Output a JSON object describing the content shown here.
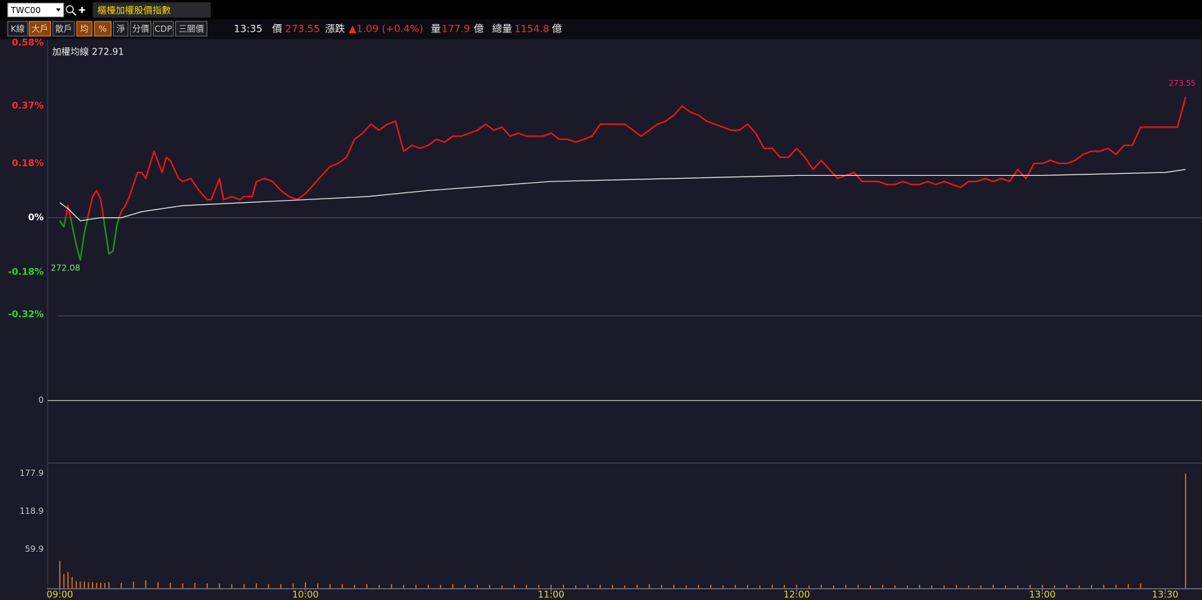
{
  "header": {
    "symbol": "TWC00",
    "title": "櫃檯加權股價指數"
  },
  "toolbar": {
    "buttons": [
      {
        "label": "K線",
        "active": false
      },
      {
        "label": "大戶",
        "active": true
      },
      {
        "label": "散戶",
        "active": false
      },
      {
        "label": "均",
        "active": true
      },
      {
        "label": "%",
        "active": true
      },
      {
        "label": "淨",
        "active": false
      },
      {
        "label": "分價",
        "active": false
      },
      {
        "label": "CDP",
        "active": false
      },
      {
        "label": "三關價",
        "active": false
      }
    ]
  },
  "quote": {
    "time": "13:35",
    "price_label": "價",
    "price": "273.55",
    "change_label": "漲跌",
    "change": "▲1.09 (+0.4%)",
    "volume_label": "量",
    "volume": "177.9",
    "volume_unit": "億",
    "total_label": "總量",
    "total": "1154.8",
    "total_unit": "億"
  },
  "chart_data": [
    {
      "type": "line",
      "xlim": [
        "08:57",
        "13:39"
      ],
      "ylim": [
        -0.325,
        0.589
      ],
      "yticks": [
        {
          "value": 0.58,
          "label": "0.58%"
        },
        {
          "value": 0.37,
          "label": "0.37%"
        },
        {
          "value": 0.18,
          "label": "0.18%"
        },
        {
          "value": 0,
          "label": "0%"
        },
        {
          "value": -0.18,
          "label": "-0.18%"
        },
        {
          "value": -0.32,
          "label": "-0.32%"
        }
      ],
      "zero_line": true,
      "series": [
        {
          "color": "#e8141c",
          "down_color": "#1f8f1f",
          "x": [
            "09:00",
            "09:01",
            "09:02",
            "09:04",
            "09:05",
            "09:06",
            "09:07",
            "09:08",
            "09:09",
            "09:10",
            "09:11",
            "09:12",
            "09:13",
            "09:14",
            "09:15",
            "09:16",
            "09:17",
            "09:18",
            "09:19",
            "09:20",
            "09:21",
            "09:23",
            "09:25",
            "09:26",
            "09:27",
            "09:29",
            "09:30",
            "09:32",
            "09:34",
            "09:36",
            "09:37",
            "09:39",
            "09:40",
            "09:42",
            "09:44",
            "09:45",
            "09:47",
            "09:48",
            "09:50",
            "09:52",
            "09:54",
            "09:56",
            "09:58",
            "10:00",
            "10:02",
            "10:04",
            "10:06",
            "10:08",
            "10:10",
            "10:12",
            "10:14",
            "10:16",
            "10:18",
            "10:20",
            "10:22",
            "10:24",
            "10:26",
            "10:28",
            "10:30",
            "10:32",
            "10:34",
            "10:36",
            "10:38",
            "10:40",
            "10:42",
            "10:44",
            "10:46",
            "10:48",
            "10:50",
            "10:52",
            "10:54",
            "10:56",
            "10:58",
            "11:00",
            "11:02",
            "11:04",
            "11:06",
            "11:08",
            "11:10",
            "11:12",
            "11:14",
            "11:16",
            "11:18",
            "11:20",
            "11:22",
            "11:24",
            "11:26",
            "11:28",
            "11:30",
            "11:32",
            "11:34",
            "11:36",
            "11:38",
            "11:40",
            "11:42",
            "11:44",
            "11:46",
            "11:48",
            "11:50",
            "11:52",
            "11:54",
            "11:56",
            "11:58",
            "12:00",
            "12:02",
            "12:04",
            "12:06",
            "12:08",
            "12:10",
            "12:12",
            "12:14",
            "12:16",
            "12:18",
            "12:20",
            "12:22",
            "12:24",
            "12:26",
            "12:28",
            "12:30",
            "12:32",
            "12:34",
            "12:36",
            "12:38",
            "12:40",
            "12:42",
            "12:44",
            "12:46",
            "12:48",
            "12:50",
            "12:52",
            "12:54",
            "12:56",
            "12:58",
            "13:00",
            "13:02",
            "13:04",
            "13:06",
            "13:08",
            "13:10",
            "13:12",
            "13:14",
            "13:16",
            "13:18",
            "13:20",
            "13:22",
            "13:24",
            "13:26",
            "13:28",
            "13:30",
            "13:33",
            "13:35"
          ],
          "values": [
            -0.01,
            -0.03,
            0.04,
            -0.09,
            -0.14,
            -0.05,
            0.01,
            0.07,
            0.09,
            0.06,
            -0.03,
            -0.12,
            -0.11,
            -0.02,
            0.02,
            0.04,
            0.07,
            0.11,
            0.15,
            0.15,
            0.13,
            0.22,
            0.15,
            0.2,
            0.19,
            0.13,
            0.12,
            0.13,
            0.09,
            0.06,
            0.06,
            0.13,
            0.06,
            0.07,
            0.06,
            0.07,
            0.07,
            0.12,
            0.13,
            0.12,
            0.09,
            0.07,
            0.06,
            0.08,
            0.11,
            0.14,
            0.17,
            0.18,
            0.2,
            0.26,
            0.28,
            0.31,
            0.29,
            0.31,
            0.32,
            0.22,
            0.24,
            0.23,
            0.24,
            0.26,
            0.25,
            0.27,
            0.27,
            0.28,
            0.29,
            0.31,
            0.29,
            0.3,
            0.27,
            0.28,
            0.27,
            0.27,
            0.27,
            0.28,
            0.26,
            0.26,
            0.25,
            0.26,
            0.27,
            0.31,
            0.31,
            0.31,
            0.31,
            0.29,
            0.27,
            0.29,
            0.31,
            0.32,
            0.34,
            0.37,
            0.35,
            0.34,
            0.32,
            0.31,
            0.3,
            0.29,
            0.29,
            0.31,
            0.28,
            0.23,
            0.23,
            0.2,
            0.2,
            0.23,
            0.2,
            0.16,
            0.19,
            0.16,
            0.13,
            0.14,
            0.15,
            0.12,
            0.12,
            0.12,
            0.11,
            0.11,
            0.12,
            0.11,
            0.11,
            0.12,
            0.11,
            0.12,
            0.11,
            0.1,
            0.12,
            0.12,
            0.13,
            0.12,
            0.13,
            0.12,
            0.16,
            0.13,
            0.18,
            0.18,
            0.19,
            0.18,
            0.18,
            0.19,
            0.21,
            0.22,
            0.22,
            0.23,
            0.21,
            0.24,
            0.24,
            0.3,
            0.3,
            0.3,
            0.3,
            0.3,
            0.4
          ]
        },
        {
          "name": "加權均線",
          "legend_value": "272.91",
          "color": "#e6e6e6",
          "x": [
            "09:00",
            "09:02",
            "09:05",
            "09:10",
            "09:15",
            "09:20",
            "09:30",
            "09:45",
            "10:00",
            "10:15",
            "10:30",
            "11:00",
            "11:30",
            "12:00",
            "12:30",
            "13:00",
            "13:30",
            "13:35"
          ],
          "values": [
            0.05,
            0.03,
            -0.01,
            0,
            0,
            0.02,
            0.04,
            0.05,
            0.06,
            0.07,
            0.09,
            0.12,
            0.13,
            0.14,
            0.14,
            0.14,
            0.15,
            0.16
          ]
        }
      ],
      "annotations": [
        {
          "x": "09:05",
          "value": -0.14,
          "label": "272.08",
          "color": "#7fe07f"
        },
        {
          "x": "13:35",
          "value": 0.4,
          "label": "273.55",
          "color": "#e8207a"
        }
      ]
    },
    {
      "type": "line",
      "ylim": [
        -0.85,
        1.15
      ],
      "yticks": [
        0
      ],
      "grid": true,
      "grid_color": "#d8d8d8"
    },
    {
      "type": "bar",
      "xlim": [
        "08:57",
        "13:39"
      ],
      "ylim": [
        0,
        193
      ],
      "yticks": [
        59.9,
        118.9,
        177.9
      ],
      "xticks": [
        "09:00",
        "10:00",
        "11:00",
        "12:00",
        "13:00",
        "13:30"
      ],
      "series": [
        {
          "color": "#e8782a",
          "x": [
            "09:00",
            "09:01",
            "09:02",
            "09:03",
            "09:04",
            "09:05",
            "09:06",
            "09:07",
            "09:08",
            "09:09",
            "09:10",
            "09:11",
            "09:12",
            "09:15",
            "09:18",
            "09:21",
            "09:24",
            "09:27",
            "09:30",
            "09:33",
            "09:36",
            "09:39",
            "09:42",
            "09:45",
            "09:48",
            "09:51",
            "09:54",
            "09:57",
            "10:00",
            "10:03",
            "10:06",
            "10:09",
            "10:12",
            "10:15",
            "10:18",
            "10:21",
            "10:24",
            "10:27",
            "10:30",
            "10:33",
            "10:36",
            "10:39",
            "10:42",
            "10:45",
            "10:48",
            "10:51",
            "10:54",
            "10:57",
            "11:00",
            "11:03",
            "11:06",
            "11:09",
            "11:12",
            "11:15",
            "11:18",
            "11:21",
            "11:24",
            "11:27",
            "11:30",
            "11:33",
            "11:36",
            "11:39",
            "11:42",
            "11:45",
            "11:48",
            "11:51",
            "11:54",
            "11:57",
            "12:00",
            "12:03",
            "12:06",
            "12:09",
            "12:12",
            "12:15",
            "12:18",
            "12:21",
            "12:24",
            "12:27",
            "12:30",
            "12:33",
            "12:36",
            "12:39",
            "12:42",
            "12:45",
            "12:48",
            "12:51",
            "12:54",
            "12:57",
            "13:00",
            "13:03",
            "13:06",
            "13:09",
            "13:12",
            "13:15",
            "13:18",
            "13:21",
            "13:24",
            "13:35"
          ],
          "values": [
            42,
            22,
            25,
            17,
            11,
            10,
            10,
            9,
            9,
            8,
            8,
            8,
            9,
            8,
            10,
            12,
            9,
            8,
            7,
            8,
            7,
            7,
            6,
            6,
            7,
            6,
            6,
            7,
            9,
            7,
            6,
            6,
            5,
            6,
            5,
            6,
            5,
            5,
            5,
            5,
            6,
            5,
            5,
            5,
            4,
            5,
            5,
            5,
            5,
            5,
            4,
            5,
            5,
            5,
            4,
            5,
            6,
            5,
            5,
            4,
            5,
            5,
            4,
            5,
            5,
            4,
            5,
            5,
            5,
            4,
            5,
            4,
            5,
            5,
            4,
            5,
            4,
            4,
            5,
            4,
            4,
            5,
            4,
            4,
            5,
            4,
            4,
            5,
            5,
            4,
            5,
            4,
            5,
            5,
            5,
            6,
            7,
            177.9
          ]
        }
      ]
    }
  ]
}
